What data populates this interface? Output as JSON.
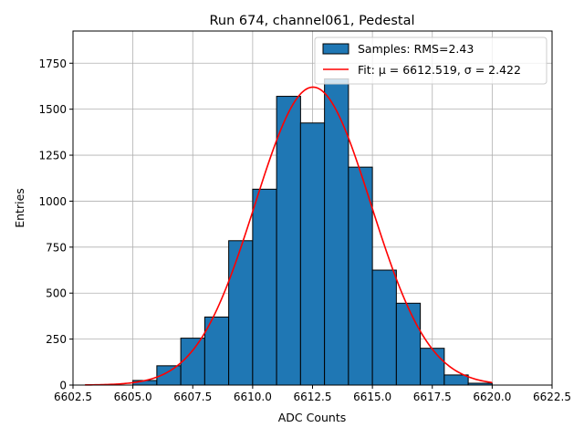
{
  "chart_data": {
    "type": "bar",
    "title": "Run 674, channel061, Pedestal",
    "xlabel": "ADC Counts",
    "ylabel": "Entries",
    "xlim": [
      6602.5,
      6622.5
    ],
    "ylim": [
      0,
      1925
    ],
    "xticks": [
      6602.5,
      6605.0,
      6607.5,
      6610.0,
      6612.5,
      6615.0,
      6617.5,
      6620.0,
      6622.5
    ],
    "xtick_labels": [
      "6602.5",
      "6605.0",
      "6607.5",
      "6610.0",
      "6612.5",
      "6615.0",
      "6617.5",
      "6620.0",
      "6622.5"
    ],
    "yticks": [
      0,
      250,
      500,
      750,
      1000,
      1250,
      1500,
      1750
    ],
    "ytick_labels": [
      "0",
      "250",
      "500",
      "750",
      "1000",
      "1250",
      "1500",
      "1750"
    ],
    "grid": true,
    "legend_position": "top-right",
    "histogram": {
      "name": "Samples: RMS=2.43",
      "color": "#1f77b4",
      "edge_color": "#000000",
      "bins": [
        {
          "x0": 6605,
          "x1": 6606,
          "count": 25
        },
        {
          "x0": 6606,
          "x1": 6607,
          "count": 105
        },
        {
          "x0": 6607,
          "x1": 6608,
          "count": 255
        },
        {
          "x0": 6608,
          "x1": 6609,
          "count": 370
        },
        {
          "x0": 6609,
          "x1": 6610,
          "count": 785
        },
        {
          "x0": 6610,
          "x1": 6611,
          "count": 1065
        },
        {
          "x0": 6611,
          "x1": 6612,
          "count": 1570
        },
        {
          "x0": 6612,
          "x1": 6613,
          "count": 1425
        },
        {
          "x0": 6613,
          "x1": 6614,
          "count": 1665
        },
        {
          "x0": 6614,
          "x1": 6615,
          "count": 1185
        },
        {
          "x0": 6615,
          "x1": 6616,
          "count": 625
        },
        {
          "x0": 6616,
          "x1": 6617,
          "count": 445
        },
        {
          "x0": 6617,
          "x1": 6618,
          "count": 200
        },
        {
          "x0": 6618,
          "x1": 6619,
          "count": 55
        },
        {
          "x0": 6619,
          "x1": 6620,
          "count": 10
        }
      ]
    },
    "fit": {
      "name": "Fit: μ = 6612.519, σ = 2.422",
      "color": "#ff0000",
      "mu": 6612.519,
      "sigma": 2.422,
      "amplitude": 1620,
      "x_range": [
        6603,
        6620
      ]
    }
  }
}
